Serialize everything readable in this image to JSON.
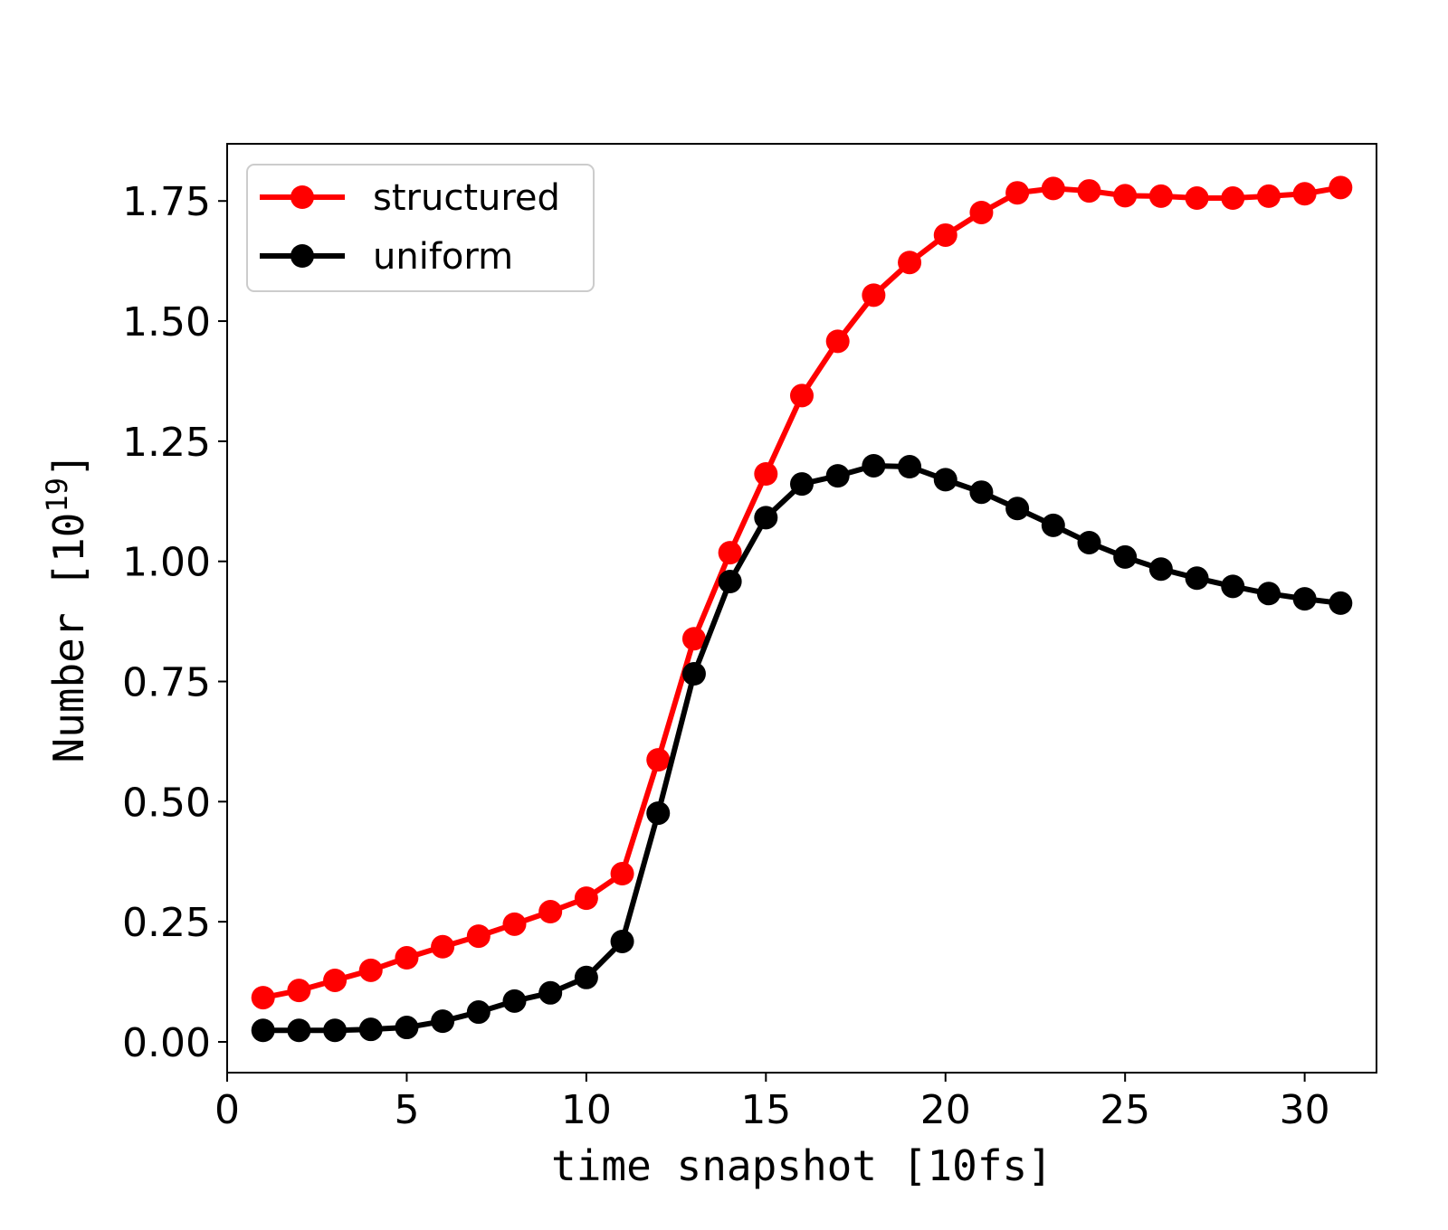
{
  "chart_data": {
    "type": "line",
    "title": "",
    "xlabel": "time snapshot [10fs]",
    "ylabel_main": "Number [10",
    "ylabel_exp": "19",
    "ylabel_close": "]",
    "xlim": [
      0,
      32
    ],
    "ylim": [
      -0.064,
      1.869
    ],
    "xticks": [
      0,
      5,
      10,
      15,
      20,
      25,
      30
    ],
    "xtick_labels": [
      "0",
      "5",
      "10",
      "15",
      "20",
      "25",
      "30"
    ],
    "yticks": [
      0,
      0.25,
      0.5,
      0.75,
      1.0,
      1.25,
      1.5,
      1.75
    ],
    "ytick_labels": [
      "0.00",
      "0.25",
      "0.50",
      "0.75",
      "1.00",
      "1.25",
      "1.50",
      "1.75"
    ],
    "grid": false,
    "legend_position": "top-left",
    "x": [
      1,
      2,
      3,
      4,
      5,
      6,
      7,
      8,
      9,
      10,
      11,
      12,
      13,
      14,
      15,
      16,
      17,
      18,
      19,
      20,
      21,
      22,
      23,
      24,
      25,
      26,
      27,
      28,
      29,
      30,
      31
    ],
    "series": [
      {
        "name": "structured",
        "color": "#ff0000",
        "values": [
          0.092,
          0.107,
          0.128,
          0.149,
          0.175,
          0.198,
          0.22,
          0.245,
          0.271,
          0.299,
          0.35,
          0.587,
          0.839,
          1.018,
          1.182,
          1.345,
          1.458,
          1.554,
          1.622,
          1.679,
          1.726,
          1.767,
          1.776,
          1.771,
          1.761,
          1.76,
          1.756,
          1.756,
          1.76,
          1.765,
          1.778
        ]
      },
      {
        "name": "uniform",
        "color": "#000000",
        "values": [
          0.024,
          0.024,
          0.024,
          0.026,
          0.03,
          0.043,
          0.062,
          0.085,
          0.102,
          0.134,
          0.209,
          0.476,
          0.766,
          0.958,
          1.091,
          1.161,
          1.178,
          1.199,
          1.197,
          1.17,
          1.144,
          1.11,
          1.075,
          1.039,
          1.009,
          0.984,
          0.965,
          0.948,
          0.933,
          0.922,
          0.913
        ]
      }
    ]
  }
}
